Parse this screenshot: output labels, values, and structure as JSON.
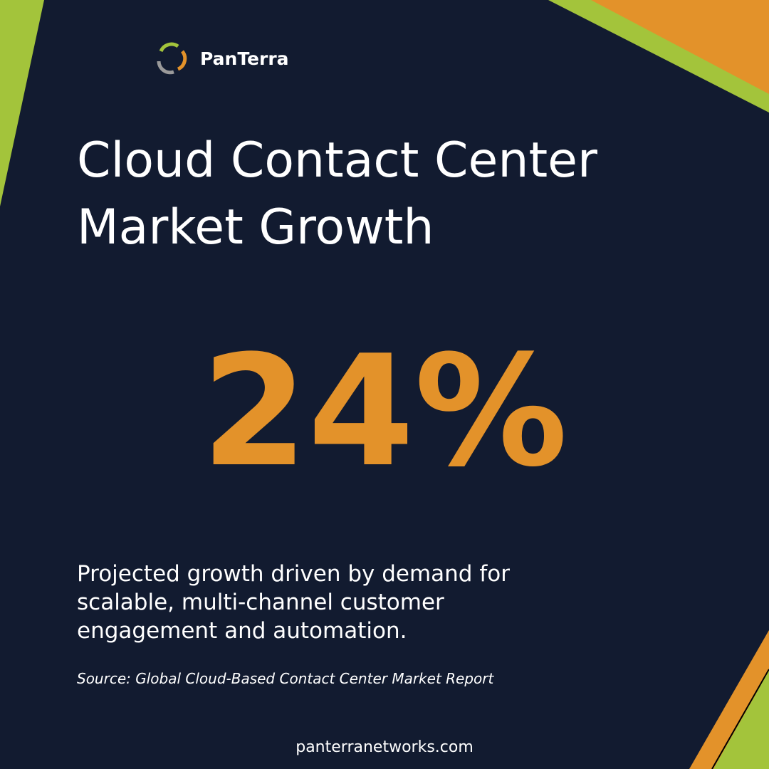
{
  "brand": "PanTerra",
  "title": [
    "Cloud Contact Center",
    "Market Growth"
  ],
  "stat": "24%",
  "description": [
    "Projected growth driven by demand for",
    "scalable, multi-channel customer",
    "engagement and automation."
  ],
  "source": "Source: Global Cloud-Based Contact Center Market Report",
  "website": "panterranetworks.com"
}
